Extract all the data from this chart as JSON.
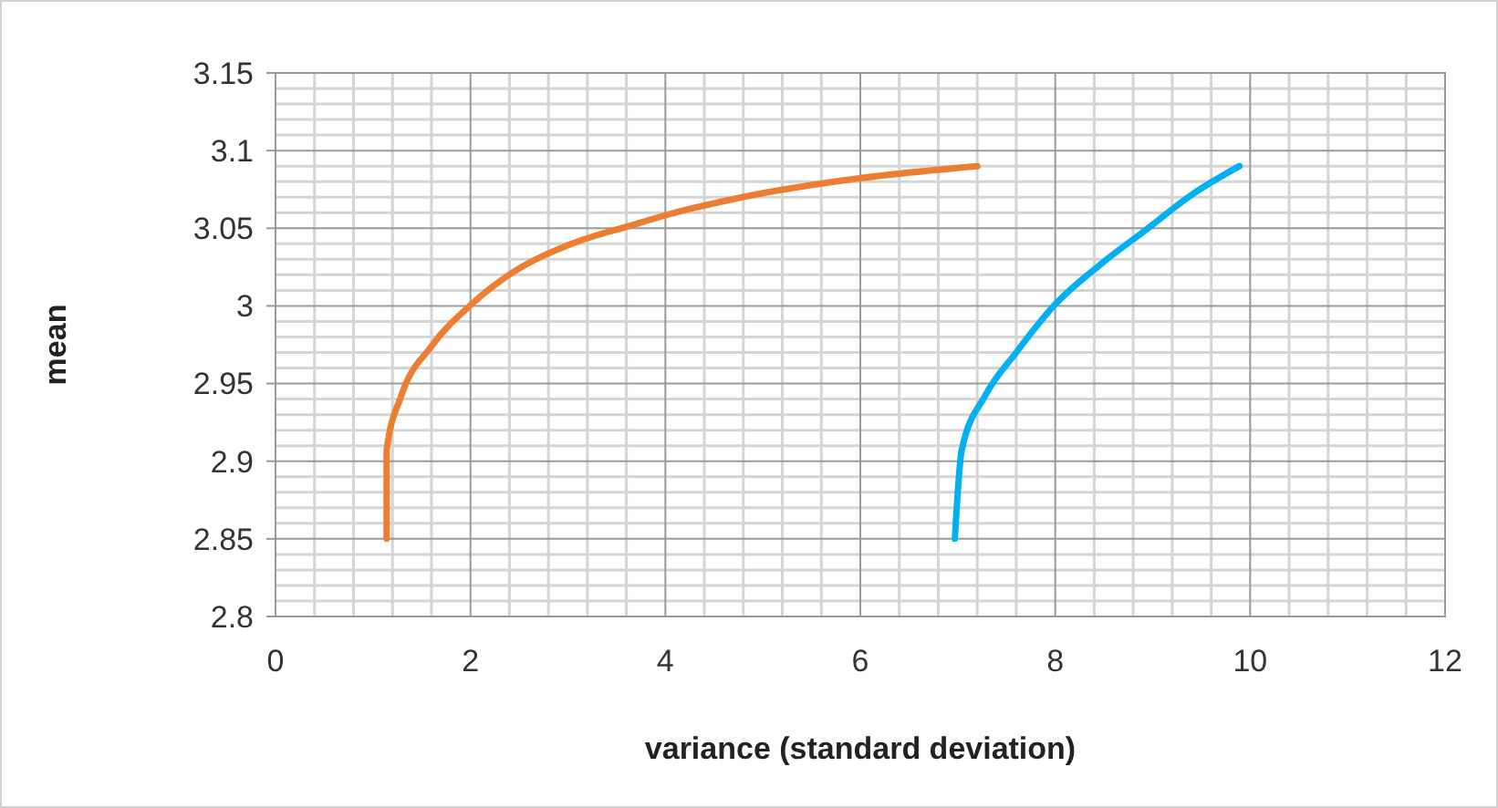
{
  "chart_data": {
    "type": "line",
    "xlabel": "variance (standard deviation)",
    "ylabel": "mean",
    "xlim": [
      0,
      12
    ],
    "xticks": [
      0,
      2,
      4,
      6,
      8,
      10,
      12
    ],
    "ylim": [
      2.8,
      3.15
    ],
    "yticks": [
      2.8,
      2.85,
      2.9,
      2.95,
      3,
      3.05,
      3.1,
      3.15
    ],
    "grid": true,
    "series": [
      {
        "color": "#ed7d31",
        "x": [
          1.14,
          1.14,
          1.29,
          1.6,
          2.01,
          2.42,
          3.04,
          3.66,
          4.04,
          4.79,
          5.97,
          7.2
        ],
        "values": [
          2.85,
          2.907,
          2.942,
          2.974,
          3.001,
          3.021,
          3.04,
          3.052,
          3.059,
          3.07,
          3.082,
          3.09
        ]
      },
      {
        "color": "#00b0f0",
        "x": [
          6.97,
          7.04,
          7.28,
          7.6,
          8,
          8.47,
          8.91,
          9.41,
          9.89
        ],
        "values": [
          2.85,
          2.907,
          2.942,
          2.97,
          3.001,
          3.027,
          3.048,
          3.072,
          3.09
        ]
      }
    ]
  }
}
